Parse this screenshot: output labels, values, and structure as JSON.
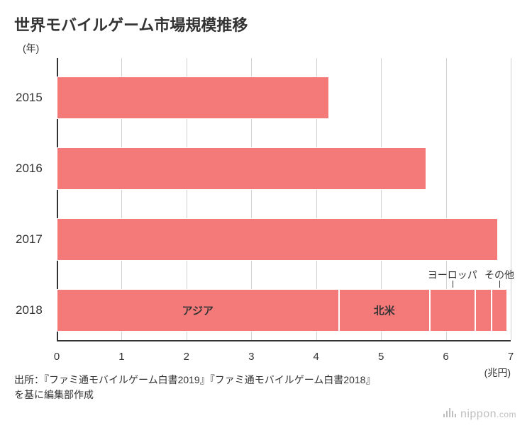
{
  "title": "世界モバイルゲーム市場規模推移",
  "y_unit_label": "(年)",
  "x_unit_label": "(兆円)",
  "source_text": "出所：『ファミ通モバイルゲーム白書2019』『ファミ通モバイルゲーム白書2018』を基に編集部作成",
  "logo_text": "nippon",
  "logo_suffix": ".com",
  "chart": {
    "type": "stacked-horizontal-bar",
    "x_min": 0,
    "x_max": 7,
    "x_tick_step": 1,
    "x_ticks": [
      "0",
      "1",
      "2",
      "3",
      "4",
      "5",
      "6",
      "7"
    ],
    "bar_color": "#f47a7a",
    "segment_border_color": "#ffffff",
    "grid_color": "#d0d0d0",
    "axis_color": "#333333",
    "background_color": "#ffffff",
    "title_fontsize": 22,
    "tick_fontsize": 15,
    "year_fontsize": 17,
    "rows": [
      {
        "year": "2015",
        "segments": [
          {
            "value": 4.2
          }
        ]
      },
      {
        "year": "2016",
        "segments": [
          {
            "value": 5.7
          }
        ]
      },
      {
        "year": "2017",
        "segments": [
          {
            "value": 6.8
          }
        ]
      },
      {
        "year": "2018",
        "segments": [
          {
            "value": 4.35,
            "label": "アジア"
          },
          {
            "value": 1.4,
            "label": "北米"
          },
          {
            "value": 0.7,
            "label": "ヨーロッパ",
            "callout": true
          },
          {
            "value": 0.25
          },
          {
            "value": 0.25,
            "label": "その他",
            "callout": true
          }
        ]
      }
    ]
  }
}
